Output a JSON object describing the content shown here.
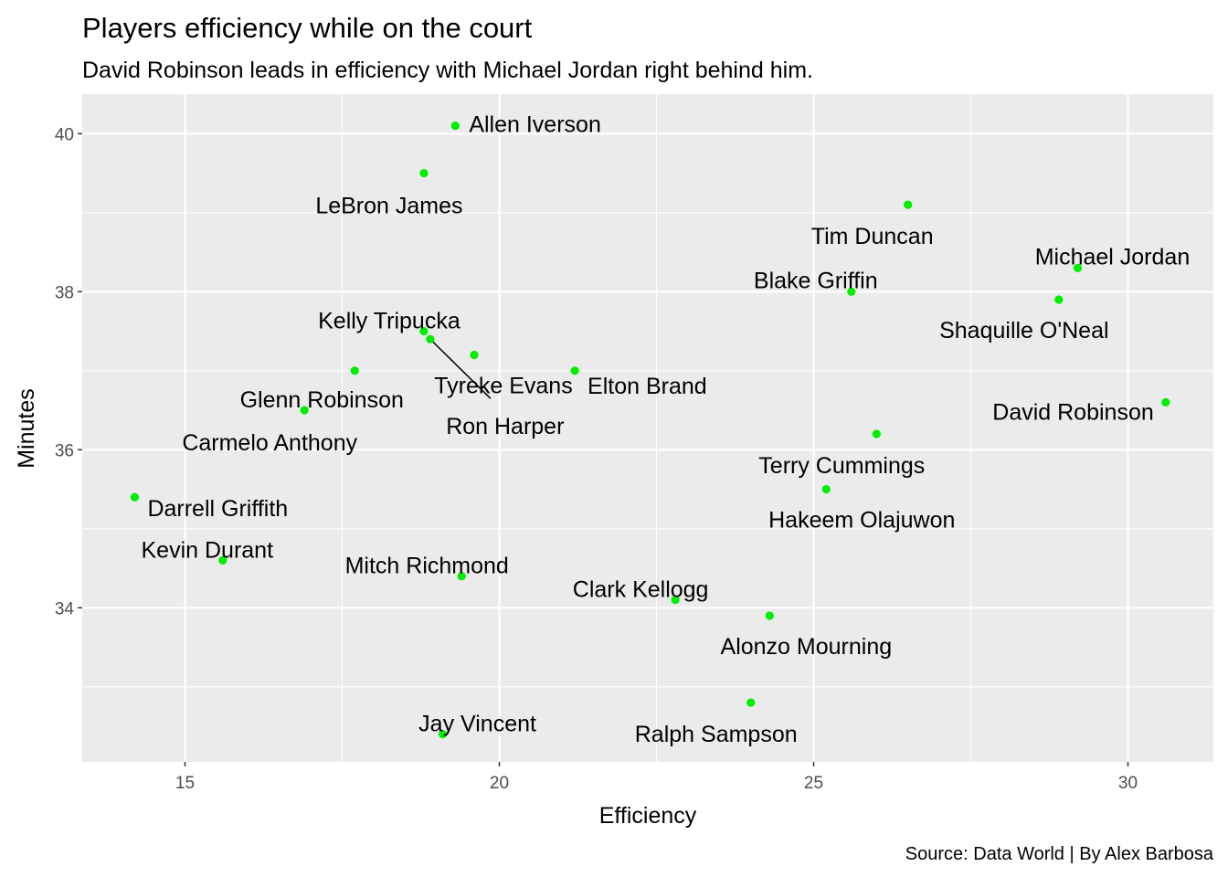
{
  "title": "Players efficiency while on the court",
  "subtitle": "David Robinson leads in efficiency with Michael Jordan right behind him.",
  "caption": "Source: Data World | By Alex Barbosa",
  "colors": {
    "panel": "#ebebeb",
    "grid": "#ffffff",
    "point": "#00ee00",
    "tick_text": "#4d4d4d",
    "text": "#000000"
  },
  "chart_data": {
    "type": "scatter",
    "xlabel": "Efficiency",
    "ylabel": "Minutes",
    "xlim": [
      13.4,
      31.4
    ],
    "ylim": [
      32.0,
      40.45
    ],
    "x_ticks": [
      15,
      20,
      25,
      30
    ],
    "y_ticks": [
      34,
      36,
      38,
      40
    ],
    "x_tick_labels": [
      "15",
      "20",
      "25",
      "30"
    ],
    "y_tick_labels": [
      "34",
      "36",
      "38",
      "40"
    ],
    "grid": true,
    "points": [
      {
        "name": "Allen Iverson",
        "x": 19.3,
        "y": 40.1
      },
      {
        "name": "LeBron James",
        "x": 18.8,
        "y": 39.5
      },
      {
        "name": "Tim Duncan",
        "x": 26.5,
        "y": 39.1
      },
      {
        "name": "Michael Jordan",
        "x": 29.2,
        "y": 38.3
      },
      {
        "name": "Blake Griffin",
        "x": 25.6,
        "y": 38.0
      },
      {
        "name": "Shaquille O'Neal",
        "x": 28.9,
        "y": 37.9
      },
      {
        "name": "Kelly Tripucka",
        "x": 18.8,
        "y": 37.5
      },
      {
        "name": "Ron Harper",
        "x": 18.9,
        "y": 37.4
      },
      {
        "name": "Tyreke Evans",
        "x": 19.6,
        "y": 37.2
      },
      {
        "name": "Glenn Robinson",
        "x": 17.7,
        "y": 37.0
      },
      {
        "name": "Elton Brand",
        "x": 21.2,
        "y": 37.0
      },
      {
        "name": "David Robinson",
        "x": 30.6,
        "y": 36.6
      },
      {
        "name": "Carmelo Anthony",
        "x": 16.9,
        "y": 36.5
      },
      {
        "name": "Terry Cummings",
        "x": 26.0,
        "y": 36.2
      },
      {
        "name": "Hakeem Olajuwon",
        "x": 25.2,
        "y": 35.5
      },
      {
        "name": "Darrell Griffith",
        "x": 14.2,
        "y": 35.4
      },
      {
        "name": "Kevin Durant",
        "x": 15.6,
        "y": 34.6
      },
      {
        "name": "Mitch Richmond",
        "x": 19.4,
        "y": 34.4
      },
      {
        "name": "Clark Kellogg",
        "x": 22.8,
        "y": 34.1
      },
      {
        "name": "Alonzo Mourning",
        "x": 24.3,
        "y": 33.9
      },
      {
        "name": "Ralph Sampson",
        "x": 24.0,
        "y": 32.8
      },
      {
        "name": "Jay Vincent",
        "x": 19.1,
        "y": 32.4
      }
    ]
  }
}
